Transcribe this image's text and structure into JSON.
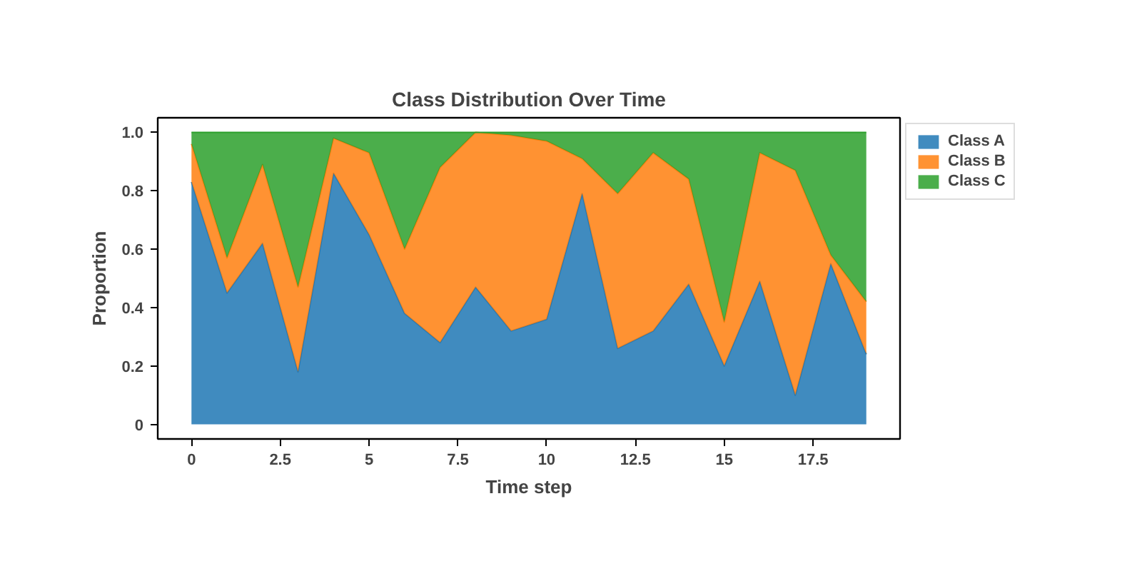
{
  "chart_data": {
    "type": "area",
    "stacked": true,
    "title": "Class Distribution Over Time",
    "xlabel": "Time step",
    "ylabel": "Proportion",
    "x": [
      0,
      1,
      2,
      3,
      4,
      5,
      6,
      7,
      8,
      9,
      10,
      11,
      12,
      13,
      14,
      15,
      16,
      17,
      18,
      19
    ],
    "series": [
      {
        "name": "Class A",
        "color": "#1f77b4",
        "values": [
          0.83,
          0.45,
          0.62,
          0.18,
          0.86,
          0.65,
          0.38,
          0.28,
          0.47,
          0.32,
          0.36,
          0.79,
          0.26,
          0.32,
          0.48,
          0.2,
          0.49,
          0.1,
          0.55,
          0.24
        ]
      },
      {
        "name": "Class B",
        "color": "#ff7f0e",
        "values": [
          0.13,
          0.12,
          0.27,
          0.29,
          0.12,
          0.28,
          0.22,
          0.6,
          0.53,
          0.67,
          0.61,
          0.12,
          0.53,
          0.61,
          0.36,
          0.15,
          0.44,
          0.77,
          0.03,
          0.18
        ]
      },
      {
        "name": "Class C",
        "color": "#2ca02c",
        "values": [
          0.04,
          0.43,
          0.11,
          0.53,
          0.02,
          0.07,
          0.4,
          0.12,
          0.0,
          0.01,
          0.03,
          0.09,
          0.21,
          0.07,
          0.16,
          0.65,
          0.07,
          0.13,
          0.42,
          0.58
        ]
      }
    ],
    "xlim": [
      -0.95,
      19.95
    ],
    "ylim": [
      -0.05,
      1.05
    ],
    "xticks": [
      0,
      2.5,
      5,
      7.5,
      10,
      12.5,
      15,
      17.5
    ],
    "yticks": [
      0,
      0.2,
      0.4,
      0.6,
      0.8,
      {
        "value": 1,
        "label": "1.0"
      }
    ],
    "grid": false,
    "legend": "right"
  }
}
